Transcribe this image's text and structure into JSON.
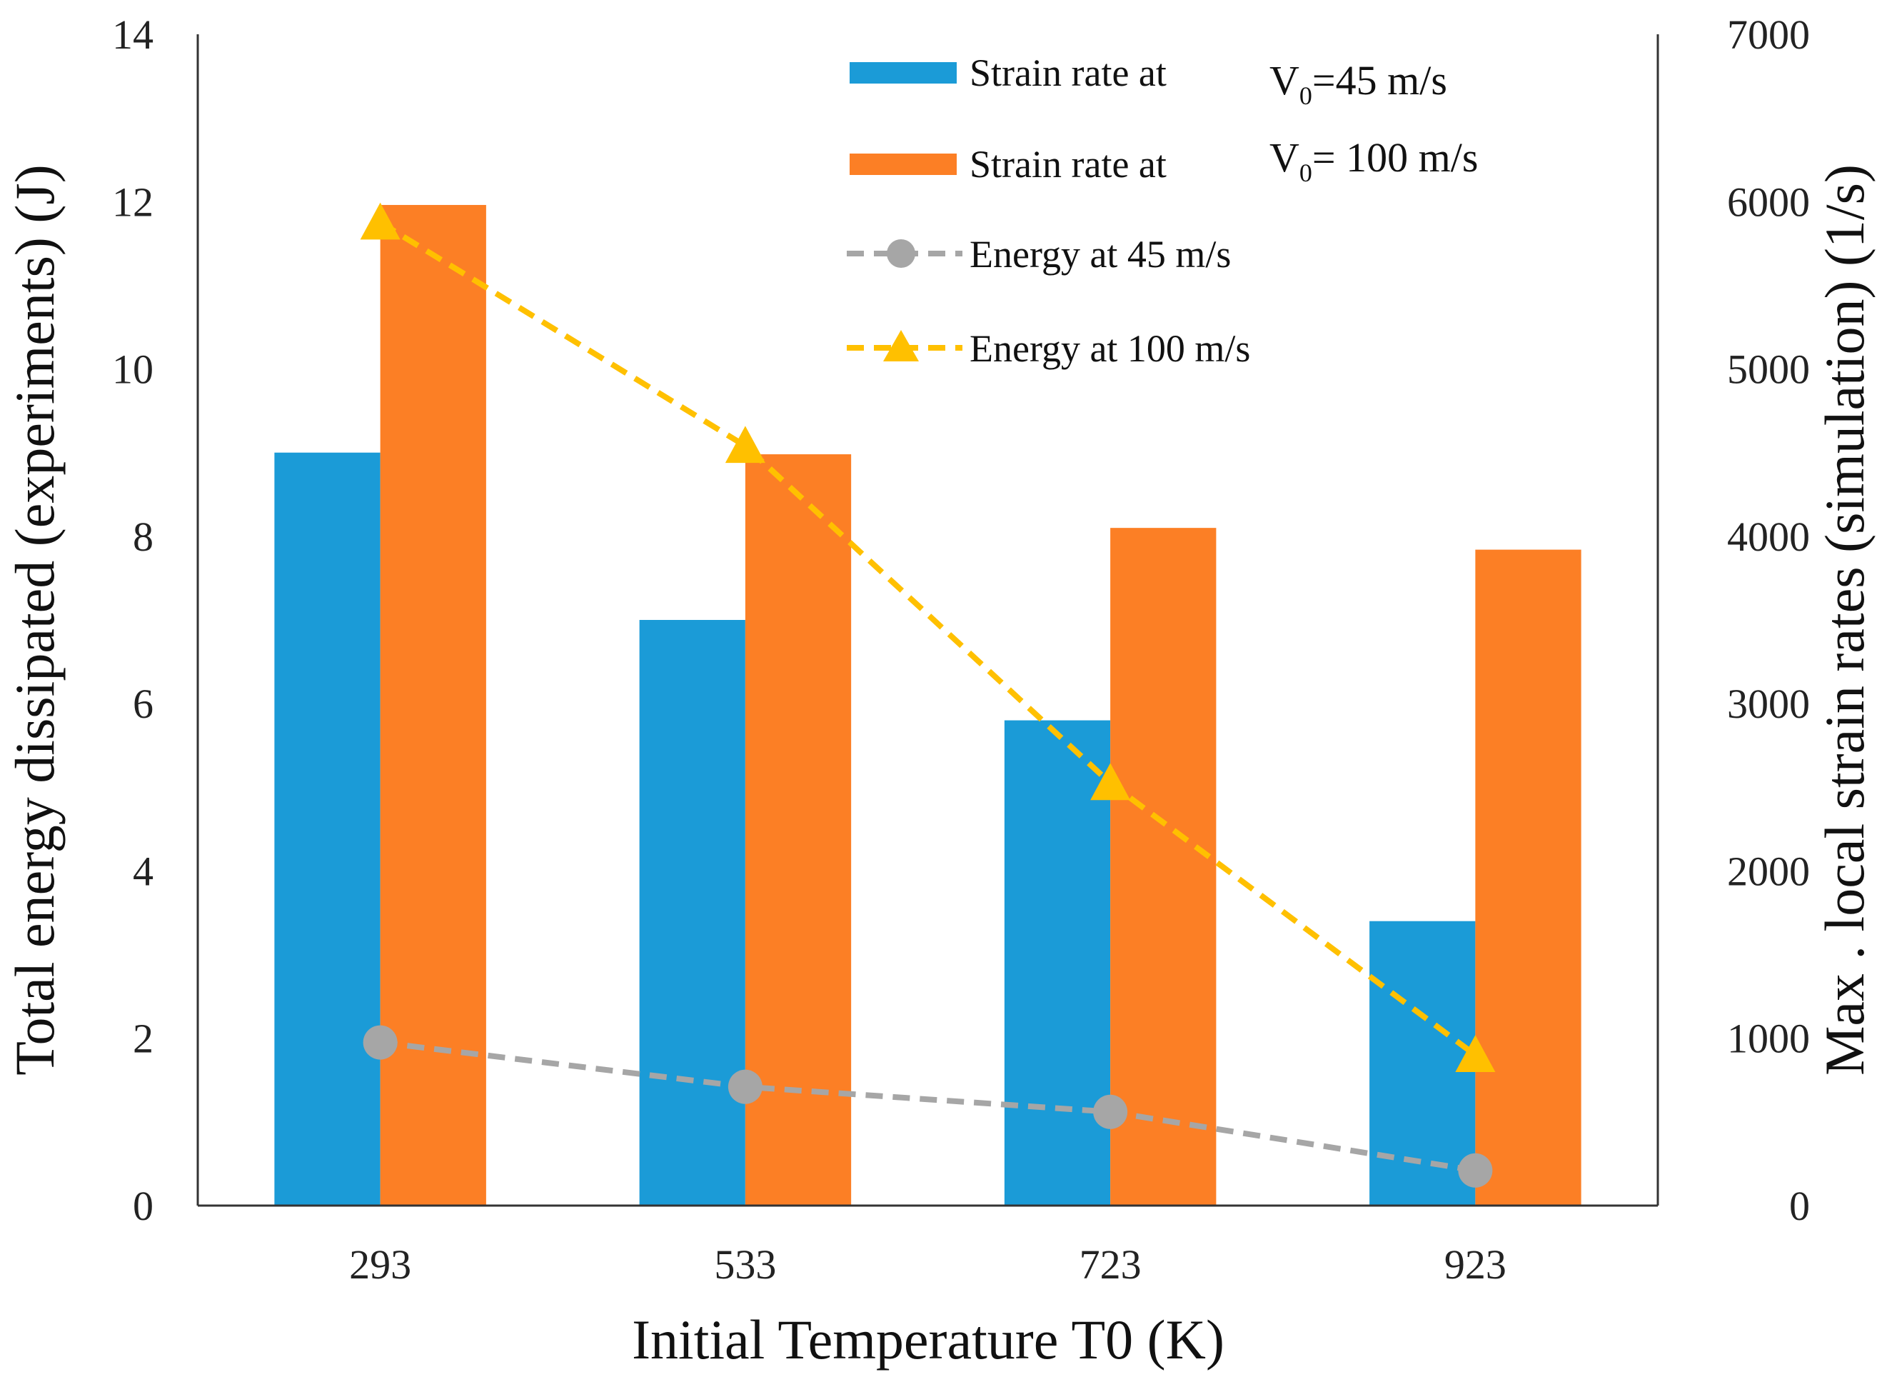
{
  "chart_data": {
    "type": "bar",
    "categories": [
      "293",
      "533",
      "723",
      "923"
    ],
    "xlabel": "Initial Temperature T0 (K)",
    "ylabel": "Total energy dissipated (experiments)  (J)",
    "y2label": "Max . local strain rates (simulation) (1/s)",
    "ylim": [
      0,
      14
    ],
    "y2lim": [
      0,
      7000
    ],
    "yticks": [
      "0",
      "2",
      "4",
      "6",
      "8",
      "10",
      "12",
      "14"
    ],
    "y2ticks": [
      "0",
      "1000",
      "2000",
      "3000",
      "4000",
      "5000",
      "6000",
      "7000"
    ],
    "grid": false,
    "legend_position": "top-right",
    "series": [
      {
        "name": "Strain rate at V0=45 m/s",
        "axis": "right",
        "kind": "bar",
        "values": [
          4500,
          3500,
          2900,
          1700
        ]
      },
      {
        "name": "Strain rate at V0= 100 m/s",
        "axis": "right",
        "kind": "bar",
        "values": [
          5980,
          4490,
          4050,
          3920
        ]
      },
      {
        "name": "Energy at 45 m/s",
        "axis": "left",
        "kind": "line",
        "marker": "circle",
        "values": [
          1.95,
          1.42,
          1.12,
          0.42
        ]
      },
      {
        "name": "Energy at 100 m/s",
        "axis": "left",
        "kind": "line",
        "marker": "triangle",
        "values": [
          11.75,
          9.08,
          5.05,
          1.8
        ]
      }
    ],
    "colors": {
      "bar45": "#1b9bd7",
      "bar100": "#fc7f25",
      "line45": "#a6a6a6",
      "line100": "#ffc000"
    }
  },
  "legend": {
    "item1": {
      "prefix": "Strain rate at",
      "v": "V",
      "sub": "0",
      "rest": "=45 m/s"
    },
    "item2": {
      "prefix": "Strain rate at",
      "v": "V",
      "sub": "0",
      "rest": "= 100 m/s"
    },
    "item3": "Energy at 45 m/s",
    "item4": "Energy at 100 m/s"
  }
}
